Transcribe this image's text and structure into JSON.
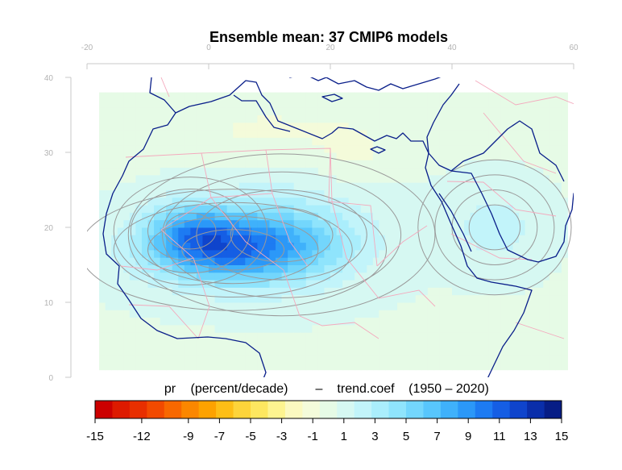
{
  "chart_data": {
    "type": "heatmap",
    "title": "Ensemble mean: 37 CMIP6 models",
    "legend_title": {
      "variable": "pr",
      "units": "(percent/decade)",
      "dash": "–",
      "statistic": "trend.coef",
      "period": "(1950 – 2020)"
    },
    "x_axis": {
      "lim": [
        -20,
        60
      ],
      "ticks": [
        "-20",
        "0",
        "20",
        "40",
        "60"
      ],
      "position": "top"
    },
    "y_axis": {
      "lim": [
        0,
        40
      ],
      "ticks": [
        "0",
        "10",
        "20",
        "30",
        "40"
      ],
      "position": "left"
    },
    "data_extent": {
      "lon": [
        -18,
        59
      ],
      "lat": [
        1,
        37.5
      ]
    },
    "grid": false,
    "colorbar": {
      "range": [
        -15,
        15
      ],
      "tick_labels": [
        "-15",
        "-12",
        "-9",
        "-7",
        "-5",
        "-3",
        "-1",
        "1",
        "3",
        "5",
        "7",
        "9",
        "11",
        "13",
        "15"
      ],
      "colors": [
        "#cc0000",
        "#dd1a00",
        "#e82f00",
        "#f24a00",
        "#f86800",
        "#fb8700",
        "#fda200",
        "#fdbe16",
        "#fdd43a",
        "#fde760",
        "#fdf490",
        "#fbf9c0",
        "#f4fbda",
        "#e6fbe6",
        "#d6f8f2",
        "#c2f4fa",
        "#aaeefc",
        "#8fe4fc",
        "#73d6fc",
        "#58c6fc",
        "#3fb1fb",
        "#2b98f8",
        "#1d7bf2",
        "#155ee4",
        "#0f44cc",
        "#0a2eaa",
        "#071d86"
      ]
    },
    "field": {
      "description": "Ensemble-mean precipitation trend; positive (wetting, blue) over the Sahel/Sahara belt, weakly negative (drying, yellow) over the Mediterranean coast and northern Sahara",
      "centers": [
        {
          "lon": 4,
          "lat": 17,
          "value": 7.5,
          "slon": 14,
          "slat": 4.5
        },
        {
          "lon": -3,
          "lat": 19.5,
          "value": 4.5,
          "slon": 7,
          "slat": 4
        },
        {
          "lon": 12,
          "lat": 19,
          "value": 3.5,
          "slon": 14,
          "slat": 6
        },
        {
          "lon": 47,
          "lat": 20,
          "value": 1.8,
          "slon": 7,
          "slat": 5
        },
        {
          "lon": 10,
          "lat": 33,
          "value": -1.3,
          "slon": 14,
          "slat": 3.5
        },
        {
          "lon": 24,
          "lat": 30,
          "value": -1.2,
          "slon": 6,
          "slat": 4
        },
        {
          "lon": -14,
          "lat": 33,
          "value": -1.0,
          "slon": 5,
          "slat": 4
        }
      ]
    }
  }
}
